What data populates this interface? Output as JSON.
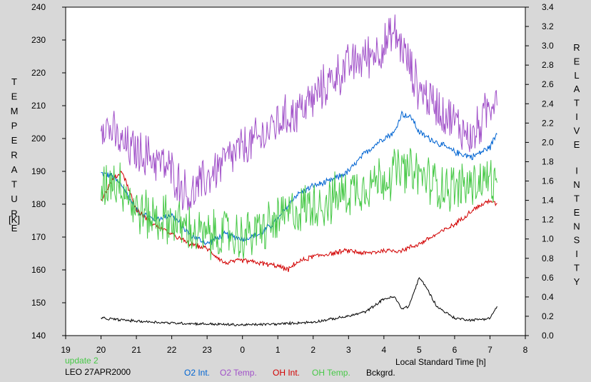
{
  "chart_data": {
    "type": "line",
    "title": "",
    "xlabel": "Local Standard Time [h]",
    "ylabel_left": "TEMPERATURE [K]",
    "ylabel_right": "RELATIVE INTENSITY",
    "xlim": [
      19,
      32
    ],
    "ylim_left": [
      140,
      240
    ],
    "ylim_right": [
      0.0,
      3.4
    ],
    "x_tick_labels": [
      "19",
      "20",
      "21",
      "22",
      "23",
      "0",
      "1",
      "2",
      "3",
      "4",
      "5",
      "6",
      "7",
      "8"
    ],
    "y_left_tick_labels": [
      "140",
      "150",
      "160",
      "170",
      "180",
      "190",
      "200",
      "210",
      "220",
      "230",
      "240"
    ],
    "y_right_tick_labels": [
      "0.0",
      "0.2",
      "0.4",
      "0.6",
      "0.8",
      "1.0",
      "1.2",
      "1.4",
      "1.6",
      "1.8",
      "2.0",
      "2.2",
      "2.4",
      "2.6",
      "2.8",
      "3.0",
      "3.2",
      "3.4"
    ],
    "grid": false,
    "annotations": {
      "update": "update 2",
      "station": "LEO 27APR2000"
    },
    "series": [
      {
        "name": "O2 Int.",
        "color": "#0064d2",
        "axis": "right",
        "noise": 0.02,
        "x": [
          20.0,
          20.3,
          20.6,
          21.0,
          21.5,
          22.0,
          22.5,
          23.0,
          23.5,
          24.0,
          24.5,
          25.0,
          25.5,
          26.0,
          26.5,
          27.0,
          27.5,
          28.0,
          28.3,
          28.5,
          28.8,
          29.0,
          29.5,
          30.0,
          30.5,
          31.0,
          31.2
        ],
        "values": [
          1.68,
          1.65,
          1.55,
          1.3,
          1.2,
          1.25,
          1.05,
          0.95,
          1.05,
          1.0,
          1.05,
          1.2,
          1.45,
          1.55,
          1.6,
          1.7,
          1.9,
          2.05,
          2.1,
          2.3,
          2.25,
          2.1,
          2.0,
          1.9,
          1.85,
          1.95,
          2.1
        ]
      },
      {
        "name": "O2 Temp.",
        "color": "#a050c8",
        "axis": "left",
        "noise": 4.0,
        "x": [
          20.0,
          20.3,
          20.6,
          21.0,
          21.5,
          22.0,
          22.5,
          23.0,
          23.5,
          24.0,
          24.5,
          25.0,
          25.5,
          26.0,
          26.5,
          27.0,
          27.5,
          28.0,
          28.3,
          28.5,
          28.8,
          29.0,
          29.5,
          30.0,
          30.5,
          31.0,
          31.2
        ],
        "values": [
          206,
          202,
          198,
          196,
          194,
          190,
          182,
          188,
          193,
          197,
          200,
          205,
          208,
          212,
          218,
          222,
          225,
          228,
          232,
          228,
          220,
          215,
          210,
          205,
          200,
          210,
          215
        ]
      },
      {
        "name": "OH Int.",
        "color": "#d20000",
        "axis": "right",
        "noise": 0.015,
        "x": [
          20.0,
          20.3,
          20.6,
          21.0,
          21.5,
          22.0,
          22.5,
          23.0,
          23.5,
          24.0,
          24.5,
          25.0,
          25.3,
          25.5,
          26.0,
          26.5,
          27.0,
          27.5,
          28.0,
          28.5,
          29.0,
          29.5,
          30.0,
          30.5,
          31.0,
          31.2
        ],
        "values": [
          1.4,
          1.6,
          1.7,
          1.3,
          1.15,
          1.05,
          0.95,
          0.9,
          0.75,
          0.78,
          0.75,
          0.72,
          0.68,
          0.75,
          0.82,
          0.85,
          0.88,
          0.85,
          0.88,
          0.88,
          0.95,
          1.05,
          1.15,
          1.3,
          1.4,
          1.35
        ]
      },
      {
        "name": "OH Temp.",
        "color": "#46c846",
        "axis": "left",
        "noise": 4.5,
        "x": [
          20.0,
          20.3,
          20.6,
          21.0,
          21.5,
          22.0,
          22.5,
          23.0,
          23.5,
          24.0,
          24.5,
          25.0,
          25.5,
          26.0,
          26.5,
          27.0,
          27.5,
          28.0,
          28.3,
          28.5,
          29.0,
          29.5,
          30.0,
          30.5,
          31.0,
          31.2
        ],
        "values": [
          185,
          188,
          186,
          178,
          176,
          175,
          172,
          170,
          171,
          170,
          172,
          175,
          178,
          180,
          181,
          184,
          186,
          188,
          190,
          190,
          189,
          186,
          185,
          186,
          188,
          184
        ]
      },
      {
        "name": "Bckgrd.",
        "color": "#000000",
        "axis": "right",
        "noise": 0.008,
        "x": [
          20.0,
          21.0,
          22.0,
          23.0,
          24.0,
          25.0,
          26.0,
          26.5,
          27.0,
          27.5,
          28.0,
          28.3,
          28.5,
          28.7,
          29.0,
          29.2,
          29.5,
          30.0,
          30.5,
          31.0,
          31.2
        ],
        "values": [
          0.18,
          0.15,
          0.13,
          0.12,
          0.11,
          0.12,
          0.14,
          0.17,
          0.2,
          0.25,
          0.38,
          0.4,
          0.28,
          0.3,
          0.6,
          0.5,
          0.3,
          0.18,
          0.16,
          0.18,
          0.3
        ]
      }
    ]
  }
}
